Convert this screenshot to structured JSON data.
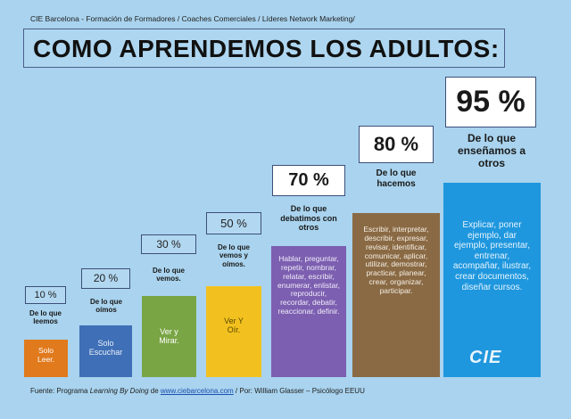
{
  "header_note": "CIE Barcelona - Formación de Formadores / Coaches Comerciales / Líderes Network Marketing/",
  "title": "COMO APRENDEMOS LOS ADULTOS:",
  "colors": {
    "background": "#a9d3ee",
    "leer": "#e07a1c",
    "escuchar": "#3f6fb6",
    "ver_mirar": "#79a544",
    "ver_oir": "#f3c11f",
    "debatir": "#7c5fb0",
    "hacer": "#8a6a44",
    "ensenar": "#1f97de"
  },
  "levels": [
    {
      "percent": "10 %",
      "caption": "De lo que leemos",
      "bar_text": "Solo Leer.",
      "bar_height_pct": 10
    },
    {
      "percent": "20 %",
      "caption": "De lo que oímos",
      "bar_text": "Solo Escuchar",
      "bar_height_pct": 20
    },
    {
      "percent": "30 %",
      "caption": "De lo que vemos.",
      "bar_text": "Ver y Mirar.",
      "bar_height_pct": 30
    },
    {
      "percent": "50 %",
      "caption": "De lo que vemos y oímos.",
      "bar_text": "Ver Y Oír.",
      "bar_height_pct": 50
    },
    {
      "percent": "70 %",
      "caption": "De lo que debatimos con otros",
      "bar_text": "Hablar, preguntar, repetir, nombrar, relatar, escribir, enumerar, enlistar, reproducir, recordar, debatir, reaccionar, definir.",
      "bar_height_pct": 70
    },
    {
      "percent": "80 %",
      "caption": "De lo que hacemos",
      "bar_text": "Escribir, interpretar, describir, expresar, revisar, identificar, comunicar, aplicar, utilizar, demostrar, practicar, planear, crear, organizar, participar.",
      "bar_height_pct": 80
    },
    {
      "percent": "95 %",
      "caption": "De lo que enseñamos a otros",
      "bar_text": "Explicar, poner ejemplo, dar ejemplo, presentar, entrenar, acompañar, ilustrar, crear documentos, diseñar cursos.",
      "bar_height_pct": 95
    }
  ],
  "logo_text": "CIE",
  "footer": {
    "prefix": "Fuente: Programa ",
    "program": "Learning By Doing",
    "de": " de ",
    "link": "www.ciebarcelona.com",
    "suffix": " /  Por: William Glasser – Psicólogo EEUU"
  }
}
